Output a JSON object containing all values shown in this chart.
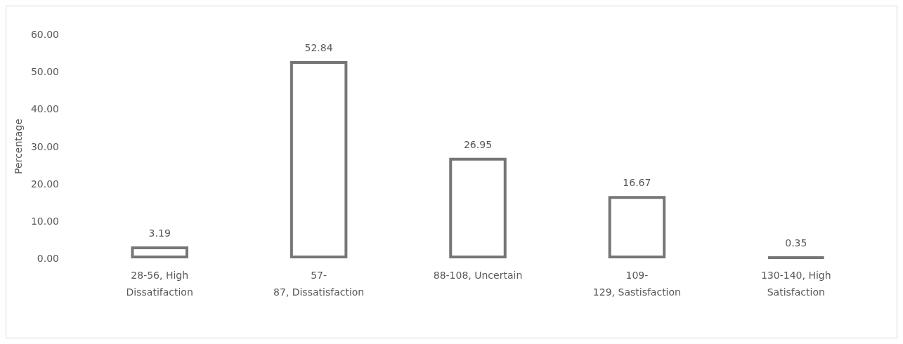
{
  "chart_data": {
    "type": "bar",
    "ylabel": "Percentage",
    "categories": [
      "28-56, High\nDissatifaction",
      "57-\n87, Dissatisfaction",
      "88-108, Uncertain",
      "109-\n129, Sastisfaction",
      "130-140, High\nSatisfaction"
    ],
    "values": [
      3.19,
      52.84,
      26.95,
      16.67,
      0.35
    ],
    "color": "#767676",
    "ylim": [
      0,
      60
    ],
    "yticks": [
      {
        "value": 0,
        "label": "0.00"
      },
      {
        "value": 10,
        "label": "10.00"
      },
      {
        "value": 20,
        "label": "20.00"
      },
      {
        "value": 30,
        "label": "30.00"
      },
      {
        "value": 40,
        "label": "40.00"
      },
      {
        "value": 50,
        "label": "50.00"
      },
      {
        "value": 60,
        "label": "60.00"
      }
    ],
    "data_labels": true,
    "grid": false
  }
}
